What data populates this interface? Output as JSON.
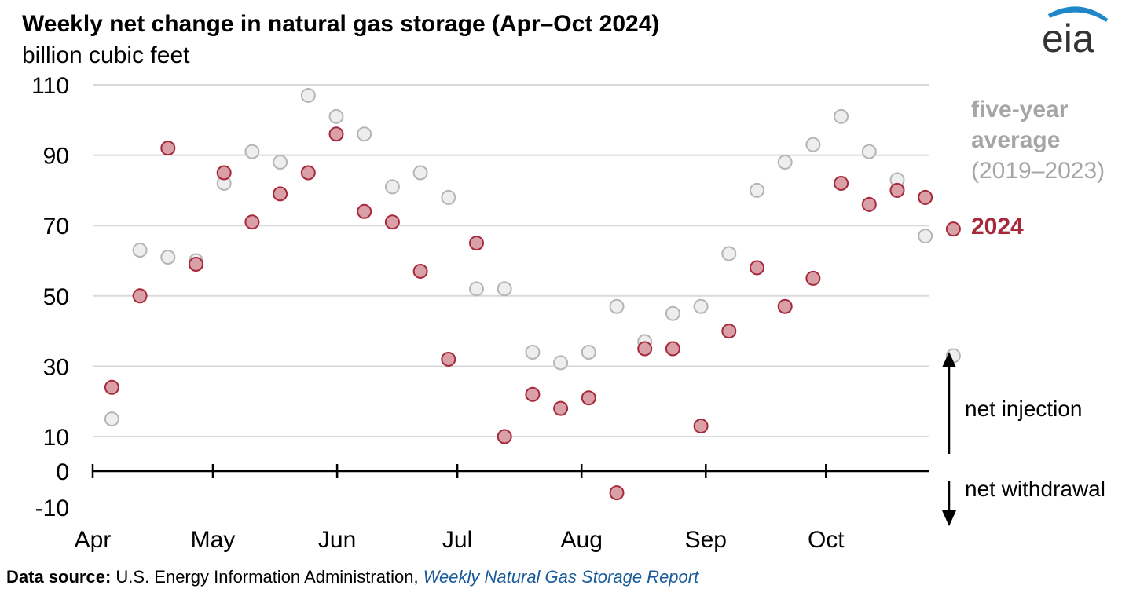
{
  "title": "Weekly net change in natural gas storage (Apr–Oct 2024)",
  "unit_label": "billion cubic feet",
  "logo_text": "eia",
  "legend": {
    "avg_line1": "five-year",
    "avg_line2": "average",
    "avg_line3": "(2019–2023)",
    "series_2024": "2024"
  },
  "annotations": {
    "net_injection": "net injection",
    "net_withdrawal": "net withdrawal"
  },
  "source": {
    "label": "Data source:",
    "text": " U.S. Energy Information Administration, ",
    "report": "Weekly Natural Gas Storage Report"
  },
  "colors": {
    "avg_fill": "#eeeeee",
    "avg_stroke": "#b5b5b5",
    "s2024_fill": "#d9a0a8",
    "s2024_stroke": "#a6283b",
    "grid": "#d9d9d9",
    "logo_swoosh": "#1f87c8"
  },
  "chart_data": {
    "type": "scatter",
    "title": "Weekly net change in natural gas storage (Apr–Oct 2024)",
    "ylabel": "billion cubic feet",
    "ylim": [
      -10,
      110
    ],
    "yticks": [
      110,
      90,
      70,
      50,
      30,
      10,
      0,
      -10
    ],
    "xlim": [
      "2024-04-01",
      "2024-10-31"
    ],
    "xticks": [
      {
        "date": "2024-04-01",
        "label": "Apr"
      },
      {
        "date": "2024-05-01",
        "label": "May"
      },
      {
        "date": "2024-06-01",
        "label": "Jun"
      },
      {
        "date": "2024-07-01",
        "label": "Jul"
      },
      {
        "date": "2024-08-01",
        "label": "Aug"
      },
      {
        "date": "2024-09-01",
        "label": "Sep"
      },
      {
        "date": "2024-10-01",
        "label": "Oct"
      }
    ],
    "grid": true,
    "legend_position": "right",
    "series": [
      {
        "name": "five-year average (2019–2023)",
        "points": [
          {
            "x": "2024-04-05",
            "y": 15
          },
          {
            "x": "2024-04-12",
            "y": 63
          },
          {
            "x": "2024-04-19",
            "y": 61
          },
          {
            "x": "2024-04-26",
            "y": 60
          },
          {
            "x": "2024-05-03",
            "y": 82
          },
          {
            "x": "2024-05-10",
            "y": 91
          },
          {
            "x": "2024-05-17",
            "y": 88
          },
          {
            "x": "2024-05-24",
            "y": 107
          },
          {
            "x": "2024-05-31",
            "y": 101
          },
          {
            "x": "2024-06-07",
            "y": 96
          },
          {
            "x": "2024-06-14",
            "y": 81
          },
          {
            "x": "2024-06-21",
            "y": 85
          },
          {
            "x": "2024-06-28",
            "y": 78
          },
          {
            "x": "2024-07-05",
            "y": 52
          },
          {
            "x": "2024-07-12",
            "y": 52
          },
          {
            "x": "2024-07-19",
            "y": 34
          },
          {
            "x": "2024-07-26",
            "y": 31
          },
          {
            "x": "2024-08-02",
            "y": 34
          },
          {
            "x": "2024-08-09",
            "y": 47
          },
          {
            "x": "2024-08-16",
            "y": 37
          },
          {
            "x": "2024-08-23",
            "y": 45
          },
          {
            "x": "2024-08-30",
            "y": 47
          },
          {
            "x": "2024-09-06",
            "y": 62
          },
          {
            "x": "2024-09-13",
            "y": 80
          },
          {
            "x": "2024-09-20",
            "y": 88
          },
          {
            "x": "2024-09-27",
            "y": 93
          },
          {
            "x": "2024-10-04",
            "y": 101
          },
          {
            "x": "2024-10-11",
            "y": 91
          },
          {
            "x": "2024-10-18",
            "y": 83
          },
          {
            "x": "2024-10-25",
            "y": 67
          },
          {
            "x": "2024-11-01",
            "y": 33
          }
        ]
      },
      {
        "name": "2024",
        "points": [
          {
            "x": "2024-04-05",
            "y": 24
          },
          {
            "x": "2024-04-12",
            "y": 50
          },
          {
            "x": "2024-04-19",
            "y": 92
          },
          {
            "x": "2024-04-26",
            "y": 59
          },
          {
            "x": "2024-05-03",
            "y": 85
          },
          {
            "x": "2024-05-10",
            "y": 71
          },
          {
            "x": "2024-05-17",
            "y": 79
          },
          {
            "x": "2024-05-24",
            "y": 85
          },
          {
            "x": "2024-05-31",
            "y": 96
          },
          {
            "x": "2024-06-07",
            "y": 74
          },
          {
            "x": "2024-06-14",
            "y": 71
          },
          {
            "x": "2024-06-21",
            "y": 57
          },
          {
            "x": "2024-06-28",
            "y": 32
          },
          {
            "x": "2024-07-05",
            "y": 65
          },
          {
            "x": "2024-07-12",
            "y": 10
          },
          {
            "x": "2024-07-19",
            "y": 22
          },
          {
            "x": "2024-07-26",
            "y": 18
          },
          {
            "x": "2024-08-02",
            "y": 21
          },
          {
            "x": "2024-08-09",
            "y": -6
          },
          {
            "x": "2024-08-16",
            "y": 35
          },
          {
            "x": "2024-08-23",
            "y": 35
          },
          {
            "x": "2024-08-30",
            "y": 13
          },
          {
            "x": "2024-09-06",
            "y": 40
          },
          {
            "x": "2024-09-13",
            "y": 58
          },
          {
            "x": "2024-09-20",
            "y": 47
          },
          {
            "x": "2024-09-27",
            "y": 55
          },
          {
            "x": "2024-10-04",
            "y": 82
          },
          {
            "x": "2024-10-11",
            "y": 76
          },
          {
            "x": "2024-10-18",
            "y": 80
          },
          {
            "x": "2024-10-25",
            "y": 78
          },
          {
            "x": "2024-11-01",
            "y": 69
          }
        ]
      }
    ]
  }
}
